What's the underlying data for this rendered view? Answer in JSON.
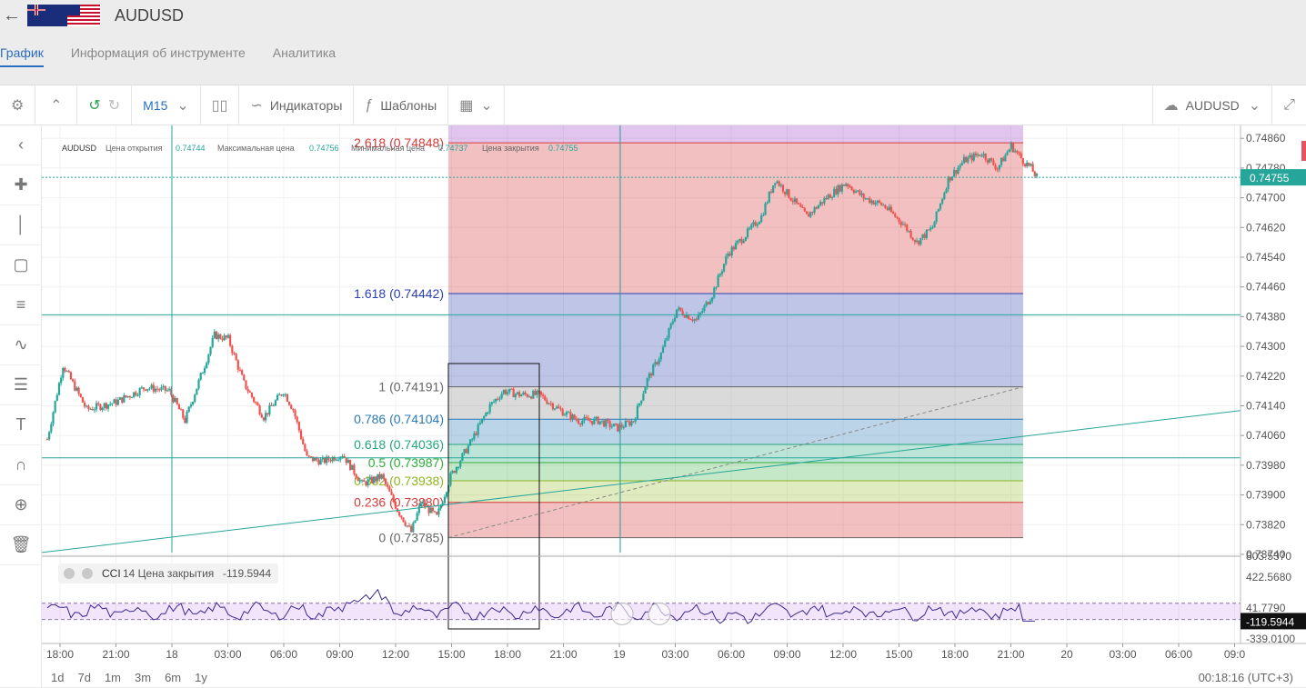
{
  "header": {
    "back_icon": "arrow-left-icon",
    "symbol": "AUDUSD"
  },
  "tabs": [
    {
      "label": "График",
      "active": true
    },
    {
      "label": "Информация об инструменте",
      "active": false
    },
    {
      "label": "Аналитика",
      "active": false
    }
  ],
  "toolbar": {
    "timeframe": "M15",
    "indicators_label": "Индикаторы",
    "templates_label": "Шаблоны",
    "symbol_label": "AUDUSD"
  },
  "ohlc": {
    "symbol": "AUDUSD",
    "open_label": "Цена открытия",
    "open": "0.74744",
    "high_label": "Максимальная цена",
    "high": "0.74756",
    "low_label": "Минимальная цена",
    "low": "0.74737",
    "close_label": "Цена закрытия",
    "close": "0.74755"
  },
  "indicator": {
    "name": "CCI",
    "params": "14 Цена закрытия",
    "value": "-119.5944"
  },
  "bottom": {
    "ranges": [
      "1d",
      "7d",
      "1m",
      "3m",
      "6m",
      "1y"
    ],
    "clock": "00:18:16 (UTC+3)"
  },
  "colors": {
    "up": "#26a69a",
    "down": "#ef5350",
    "accent": "#2a6ebd"
  },
  "chart_data": {
    "type": "candlestick",
    "price_axis": {
      "ticks": [
        "0.74860",
        "0.74780",
        "0.74700",
        "0.74620",
        "0.74540",
        "0.74460",
        "0.74380",
        "0.74300",
        "0.74220",
        "0.74140",
        "0.74060",
        "0.73980",
        "0.73900",
        "0.73820",
        "0.73740"
      ],
      "range": [
        0.73735,
        0.74885
      ],
      "last_price": "0.74755"
    },
    "time_axis": {
      "ticks": [
        "18:00",
        "21:00",
        "18",
        "03:00",
        "06:00",
        "09:00",
        "12:00",
        "15:00",
        "18:00",
        "21:00",
        "19",
        "03:00",
        "06:00",
        "09:00",
        "12:00",
        "15:00",
        "18:00",
        "21:00",
        "20",
        "03:00",
        "06:00",
        "09:0"
      ]
    },
    "fibonacci": {
      "levels": [
        {
          "label": "2.618 (0.74848)",
          "ratio": 2.618,
          "price": 0.74848,
          "color": "#d63a3a"
        },
        {
          "label": "1.618 (0.74442)",
          "ratio": 1.618,
          "price": 0.74442,
          "color": "#2c3fb0"
        },
        {
          "label": "1 (0.74191)",
          "ratio": 1,
          "price": 0.74191,
          "color": "#666666"
        },
        {
          "label": "0.786 (0.74104)",
          "ratio": 0.786,
          "price": 0.74104,
          "color": "#2a7ab8"
        },
        {
          "label": "0.618 (0.74036)",
          "ratio": 0.618,
          "price": 0.74036,
          "color": "#23a87a"
        },
        {
          "label": "0.5 (0.73987)",
          "ratio": 0.5,
          "price": 0.73987,
          "color": "#2eae3a"
        },
        {
          "label": "0.382 (0.73938)",
          "ratio": 0.382,
          "price": 0.73938,
          "color": "#8fb61e"
        },
        {
          "label": "0.236 (0.73880)",
          "ratio": 0.236,
          "price": 0.7388,
          "color": "#d63a3a"
        },
        {
          "label": "0 (0.73785)",
          "ratio": 0,
          "price": 0.73785,
          "color": "#666666"
        }
      ]
    },
    "cci_axis": {
      "ticks": [
        "803.5370",
        "422.5680",
        "41.7790",
        "-339.0100"
      ],
      "last_value": "-119.5944"
    },
    "close_anchors": [
      [
        0,
        0.7405
      ],
      [
        8,
        0.7425
      ],
      [
        20,
        0.7413
      ],
      [
        35,
        0.7415
      ],
      [
        50,
        0.7419
      ],
      [
        62,
        0.7418
      ],
      [
        70,
        0.741
      ],
      [
        80,
        0.7425
      ],
      [
        85,
        0.7433
      ],
      [
        92,
        0.7432
      ],
      [
        100,
        0.742
      ],
      [
        110,
        0.7411
      ],
      [
        120,
        0.7418
      ],
      [
        125,
        0.7413
      ],
      [
        132,
        0.74
      ],
      [
        140,
        0.7399
      ],
      [
        150,
        0.7401
      ],
      [
        160,
        0.7393
      ],
      [
        170,
        0.7395
      ],
      [
        178,
        0.7386
      ],
      [
        185,
        0.738
      ],
      [
        190,
        0.7388
      ],
      [
        198,
        0.7384
      ],
      [
        205,
        0.7395
      ],
      [
        215,
        0.7404
      ],
      [
        225,
        0.7414
      ],
      [
        232,
        0.7418
      ],
      [
        240,
        0.7417
      ],
      [
        250,
        0.7417
      ],
      [
        260,
        0.7413
      ],
      [
        270,
        0.741
      ],
      [
        280,
        0.741
      ],
      [
        290,
        0.7408
      ],
      [
        298,
        0.741
      ],
      [
        305,
        0.7421
      ],
      [
        312,
        0.7428
      ],
      [
        320,
        0.744
      ],
      [
        330,
        0.7437
      ],
      [
        338,
        0.7444
      ],
      [
        346,
        0.7455
      ],
      [
        355,
        0.746
      ],
      [
        363,
        0.7465
      ],
      [
        370,
        0.7475
      ],
      [
        378,
        0.747
      ],
      [
        386,
        0.7465
      ],
      [
        396,
        0.747
      ],
      [
        406,
        0.7474
      ],
      [
        415,
        0.747
      ],
      [
        425,
        0.7468
      ],
      [
        435,
        0.7463
      ],
      [
        442,
        0.7458
      ],
      [
        450,
        0.7462
      ],
      [
        458,
        0.7475
      ],
      [
        466,
        0.748
      ],
      [
        475,
        0.7482
      ],
      [
        483,
        0.7478
      ],
      [
        490,
        0.7484
      ],
      [
        496,
        0.748
      ],
      [
        500,
        0.7478
      ],
      [
        503,
        0.74755
      ]
    ]
  }
}
